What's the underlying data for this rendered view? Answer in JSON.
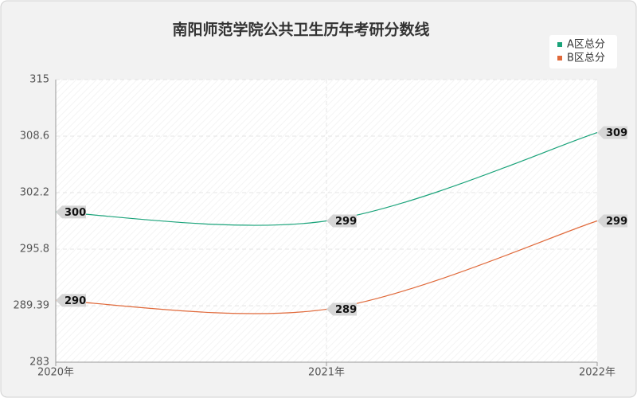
{
  "chart_data": {
    "type": "line",
    "title": "南阳师范学院公共卫生历年考研分数线",
    "categories": [
      "2020年",
      "2021年",
      "2022年"
    ],
    "series": [
      {
        "name": "A区总分",
        "color": "#1aa37a",
        "values": [
          300,
          299,
          309
        ]
      },
      {
        "name": "B区总分",
        "color": "#e0693a",
        "values": [
          290,
          289,
          299
        ]
      }
    ],
    "ylim": [
      283,
      315
    ],
    "yticks": [
      283,
      289.39,
      295.8,
      302.2,
      308.6,
      315
    ],
    "grid": true,
    "legend": "top-right"
  }
}
